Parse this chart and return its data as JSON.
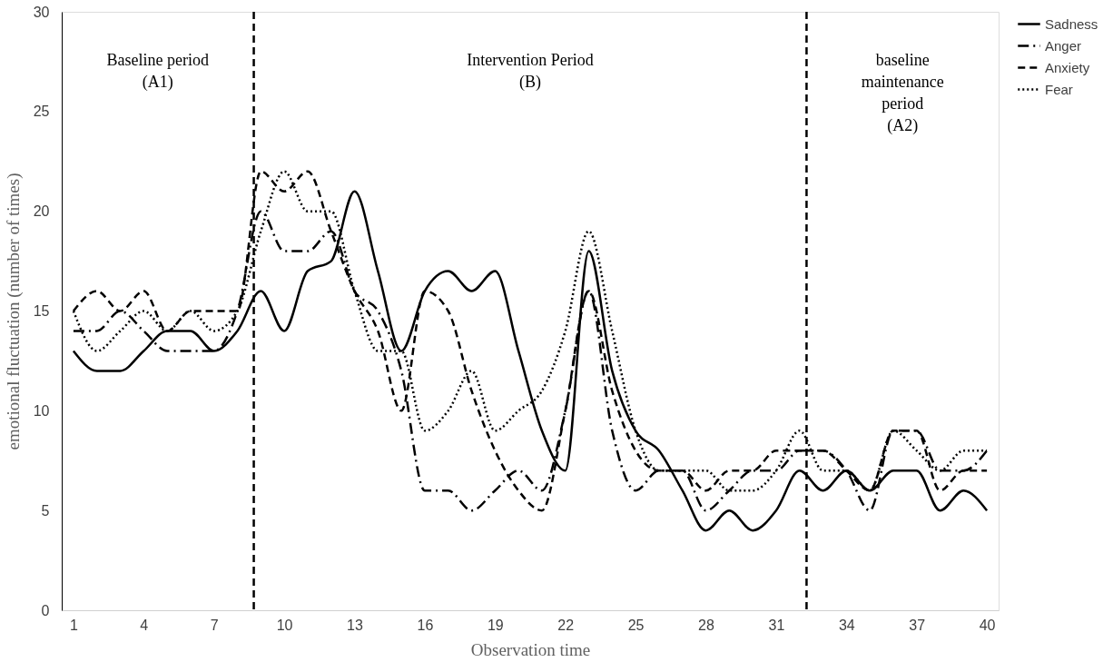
{
  "chart_data": {
    "type": "line",
    "xlabel": "Observation time",
    "ylabel": "emotional fluctuation (number of times)",
    "x": [
      1,
      2,
      3,
      4,
      5,
      6,
      7,
      8,
      9,
      10,
      11,
      12,
      13,
      14,
      15,
      16,
      17,
      18,
      19,
      20,
      21,
      22,
      23,
      24,
      25,
      26,
      27,
      28,
      29,
      30,
      31,
      32,
      33,
      34,
      35,
      36,
      37,
      38,
      39,
      40
    ],
    "series": [
      {
        "name": "Sadness",
        "color": "#000000",
        "line_style": "solid",
        "values": [
          13,
          12,
          12,
          13,
          14,
          14,
          13,
          14,
          16,
          14,
          17,
          17.5,
          21,
          17,
          13,
          16,
          17,
          16,
          17,
          13,
          9,
          7,
          18,
          12,
          9,
          8,
          6,
          4,
          5,
          4,
          5,
          7,
          6,
          7,
          6,
          7,
          7,
          5,
          6,
          5
        ]
      },
      {
        "name": "Anger",
        "color": "#000000",
        "line_style": "dashdot",
        "values": [
          14,
          14,
          15,
          14,
          13,
          13,
          13,
          15,
          20,
          18,
          18,
          19,
          16,
          15,
          12,
          6,
          6,
          5,
          6,
          7,
          6,
          10,
          16,
          9,
          6,
          7,
          7,
          5,
          6,
          7,
          7,
          8,
          8,
          7,
          5,
          9,
          9,
          7,
          7,
          8
        ]
      },
      {
        "name": "Anxiety",
        "color": "#000000",
        "line_style": "dashed",
        "values": [
          15,
          16,
          15,
          16,
          14,
          15,
          15,
          15,
          22,
          21,
          22,
          19,
          16,
          14,
          10,
          16,
          15,
          11,
          8,
          6,
          5,
          10,
          16,
          11,
          8,
          7,
          7,
          6,
          7,
          7,
          8,
          8,
          8,
          7,
          6,
          9,
          9,
          6,
          7,
          7
        ]
      },
      {
        "name": "Fear",
        "color": "#000000",
        "line_style": "dotted",
        "values": [
          15,
          13,
          14,
          15,
          14,
          15,
          14,
          15,
          19,
          22,
          20,
          20,
          16,
          13,
          13,
          9,
          10,
          12,
          9,
          10,
          11,
          14,
          19,
          14,
          9,
          7,
          7,
          7,
          6,
          6,
          7,
          9,
          7,
          7,
          6,
          9,
          8,
          7,
          8,
          8
        ]
      }
    ],
    "xlim": [
      0.5,
      40.5
    ],
    "xticks": [
      1,
      4,
      7,
      10,
      13,
      16,
      19,
      22,
      25,
      28,
      31,
      34,
      37,
      40
    ],
    "ylim": [
      0,
      30
    ],
    "yticks": [
      0,
      5,
      10,
      15,
      20,
      25,
      30
    ],
    "ref_lines": [
      {
        "axis": "x",
        "value": 8.7,
        "color": "#000000",
        "line_style": "dashed"
      },
      {
        "axis": "x",
        "value": 32.3,
        "color": "#000000",
        "line_style": "dashed"
      }
    ],
    "annotations": [
      "Baseline period\n(A1)",
      "Intervention Period\n(B)",
      "baseline\nmaintenance\nperiod\n(A2)"
    ],
    "grid": false,
    "legend": "right",
    "marker": "none"
  }
}
